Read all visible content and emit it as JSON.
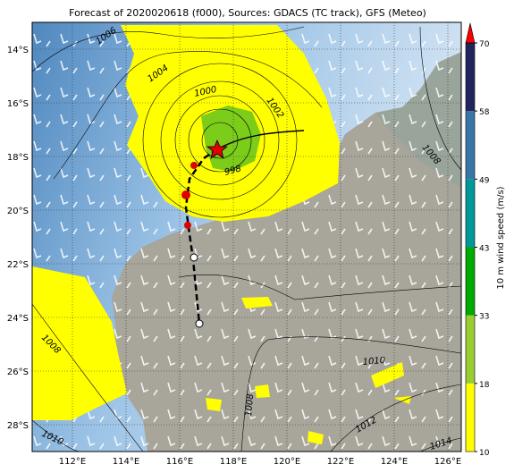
{
  "title": "Forecast of 2020020618 (f000), Sources: GDACS (TC track), GFS (Meteo)",
  "map": {
    "lonlim": [
      110.5,
      126.5
    ],
    "latlim": [
      -29,
      -13
    ],
    "lon_ticks": [
      {
        "value": 112,
        "label": "112°E"
      },
      {
        "value": 114,
        "label": "114°E"
      },
      {
        "value": 116,
        "label": "116°E"
      },
      {
        "value": 118,
        "label": "118°E"
      },
      {
        "value": 120,
        "label": "120°E"
      },
      {
        "value": 122,
        "label": "122°E"
      },
      {
        "value": 124,
        "label": "124°E"
      },
      {
        "value": 126,
        "label": "126°E"
      }
    ],
    "lat_ticks": [
      {
        "value": -14,
        "label": "14°S"
      },
      {
        "value": -16,
        "label": "16°S"
      },
      {
        "value": -18,
        "label": "18°S"
      },
      {
        "value": -20,
        "label": "20°S"
      },
      {
        "value": -22,
        "label": "22°S"
      },
      {
        "value": -24,
        "label": "24°S"
      },
      {
        "value": -26,
        "label": "26°S"
      },
      {
        "value": -28,
        "label": "28°S"
      }
    ],
    "contour_labels": [
      "1006",
      "1004",
      "1000",
      "1002",
      "998",
      "1008",
      "1008",
      "1010",
      "1010",
      "1008",
      "1012",
      "1014"
    ]
  },
  "colorbar": {
    "label": "10 m wind speed (m/s)",
    "ticks": [
      10,
      18,
      33,
      43,
      49,
      58,
      70
    ],
    "colors": [
      "#ffff00",
      "#9acd32",
      "#00aa00",
      "#009999",
      "#3a75a8",
      "#22245e"
    ],
    "extend_color": "#ff0000"
  }
}
